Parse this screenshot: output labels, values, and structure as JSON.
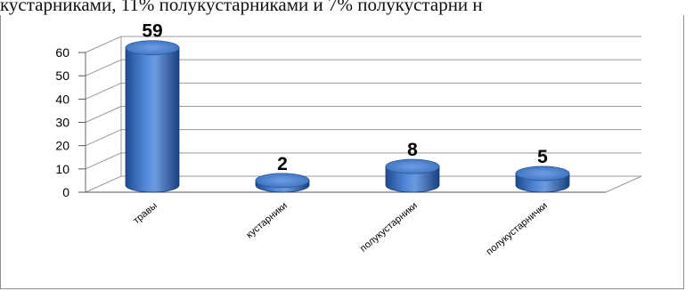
{
  "page_text": "кустарниками, 11% полукустарниками и 7% полукустарни н",
  "chart_data": {
    "type": "bar",
    "categories": [
      "травы",
      "кустарники",
      "полукустарники",
      "полукустарнички"
    ],
    "values": [
      59,
      2,
      8,
      5
    ],
    "data_labels": [
      "59",
      "2",
      "8",
      "5"
    ],
    "ylim": [
      0,
      60
    ],
    "yticks": [
      "0",
      "10",
      "20",
      "30",
      "40",
      "50",
      "60"
    ],
    "grid": true,
    "legend": "none",
    "style": "3d-cylinder",
    "colors": {
      "bar": "#3d73c4",
      "bar_dark": "#1f4a8e",
      "bar_light": "#7aa6e8",
      "grid": "#9a9a9a"
    }
  }
}
